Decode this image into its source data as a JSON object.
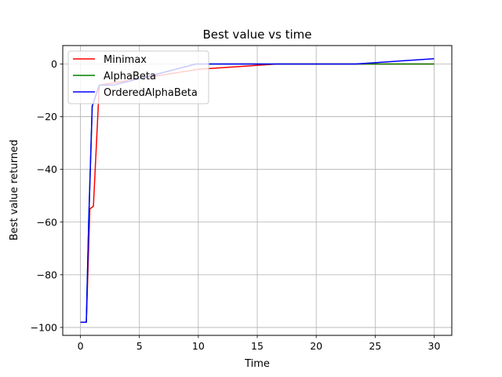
{
  "chart_data": {
    "type": "line",
    "title": "Best value vs time",
    "xlabel": "Time",
    "ylabel": "Best value returned",
    "xlim": [
      -1.5,
      31.5
    ],
    "ylim": [
      -103,
      7
    ],
    "xticks": [
      0,
      5,
      10,
      15,
      20,
      25,
      30
    ],
    "yticks": [
      -100,
      -80,
      -60,
      -40,
      -20,
      0
    ],
    "grid": true,
    "legend_position": "top-left",
    "series": [
      {
        "name": "Minimax",
        "color": "#ff0000",
        "x": [
          0,
          0.5,
          0.8,
          1.1,
          1.6,
          10,
          16.7,
          30
        ],
        "y": [
          -98,
          -98,
          -55,
          -54,
          -8,
          -2,
          0,
          0
        ]
      },
      {
        "name": "AlphaBeta",
        "color": "#008000",
        "x": [
          0,
          0.5,
          0.7,
          1.0,
          1.6,
          2.8,
          5.5,
          9.8,
          10.5,
          16.7,
          30
        ],
        "y": [
          -98,
          -98,
          -60,
          -16,
          -8,
          -8,
          -5,
          0,
          0,
          0,
          0
        ]
      },
      {
        "name": "OrderedAlphaBeta",
        "color": "#0000ff",
        "x": [
          0,
          0.5,
          0.7,
          1.0,
          1.6,
          2.8,
          5.5,
          9.8,
          10.5,
          16.7,
          23.3,
          30
        ],
        "y": [
          -98,
          -98,
          -60,
          -16,
          -8,
          -8,
          -5,
          0,
          0,
          0,
          0,
          2
        ]
      }
    ]
  }
}
